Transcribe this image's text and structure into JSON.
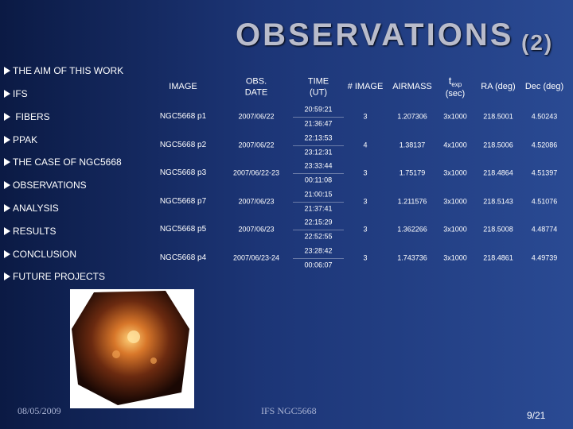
{
  "header": {
    "title": "OBSERVATIONS",
    "number": "(2)"
  },
  "nav": [
    "THE AIM OF THIS WORK",
    "IFS",
    " FIBERS",
    "PPAK",
    "THE CASE OF NGC5668",
    "OBSERVATIONS",
    "ANALYSIS",
    "RESULTS",
    "CONCLUSION",
    "FUTURE PROJECTS"
  ],
  "table": {
    "columns": [
      "IMAGE",
      "OBS. DATE",
      "TIME (UT)",
      "# IMAGE",
      "AIRMASS",
      {
        "main": "t",
        "sub": "exp",
        "unit": "(sec)"
      },
      "RA (deg)",
      "Dec (deg)"
    ],
    "rows": [
      [
        "NGC5668 p1",
        "2007/06/22",
        [
          "20:59:21",
          "21:36:47"
        ],
        "3",
        "1.207306",
        "3x1000",
        "218.5001",
        "4.50243"
      ],
      [
        "NGC5668 p2",
        "2007/06/22",
        [
          "22:13:53",
          "23:12:31"
        ],
        "4",
        "1.38137",
        "4x1000",
        "218.5006",
        "4.52086"
      ],
      [
        "NGC5668 p3",
        "2007/06/22-23",
        [
          "23:33:44",
          "00:11:08"
        ],
        "3",
        "1.75179",
        "3x1000",
        "218.4864",
        "4.51397"
      ],
      [
        "NGC5668 p7",
        "2007/06/23",
        [
          "21:00:15",
          "21:37:41"
        ],
        "3",
        "1.211576",
        "3x1000",
        "218.5143",
        "4.51076"
      ],
      [
        "NGC5668 p5",
        "2007/06/23",
        [
          "22:15:29",
          "22:52:55"
        ],
        "3",
        "1.362266",
        "3x1000",
        "218.5008",
        "4.48774"
      ],
      [
        "NGC5668 p4",
        "2007/06/23-24",
        [
          "23:28:42",
          "00:06:07"
        ],
        "3",
        "1.743736",
        "3x1000",
        "218.4861",
        "4.49739"
      ]
    ]
  },
  "footer": {
    "date": "08/05/2009",
    "center": "IFS NGC5668",
    "page": "9/21"
  }
}
